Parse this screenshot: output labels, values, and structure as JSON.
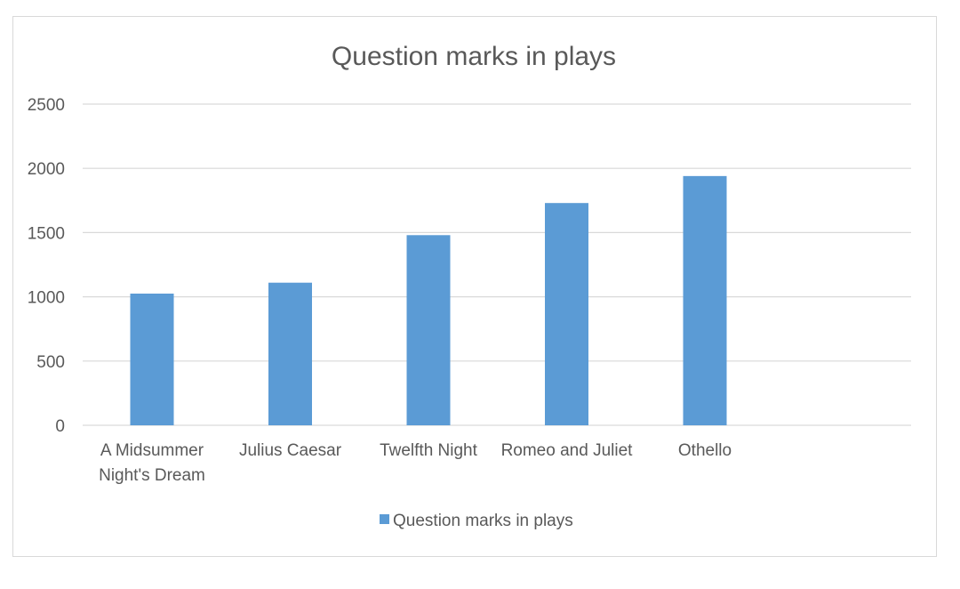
{
  "chart_data": {
    "type": "bar",
    "title": "Question marks in plays",
    "categories": [
      [
        "A Midsummer",
        "Night's Dream"
      ],
      [
        "Julius Caesar"
      ],
      [
        "Twelfth Night"
      ],
      [
        "Romeo and Juliet"
      ],
      [
        "Othello"
      ]
    ],
    "series": [
      {
        "name": "Question marks in plays",
        "values": [
          1025,
          1110,
          1480,
          1730,
          1940
        ]
      }
    ],
    "ylim": [
      0,
      2500
    ],
    "yticks": [
      0,
      500,
      1000,
      1500,
      2000,
      2500
    ],
    "grid": true,
    "legend": "bottom",
    "colors": {
      "bar": "#5b9bd5",
      "grid": "#d9d9d9",
      "text": "#595959",
      "border": "#d9d9d9"
    }
  }
}
